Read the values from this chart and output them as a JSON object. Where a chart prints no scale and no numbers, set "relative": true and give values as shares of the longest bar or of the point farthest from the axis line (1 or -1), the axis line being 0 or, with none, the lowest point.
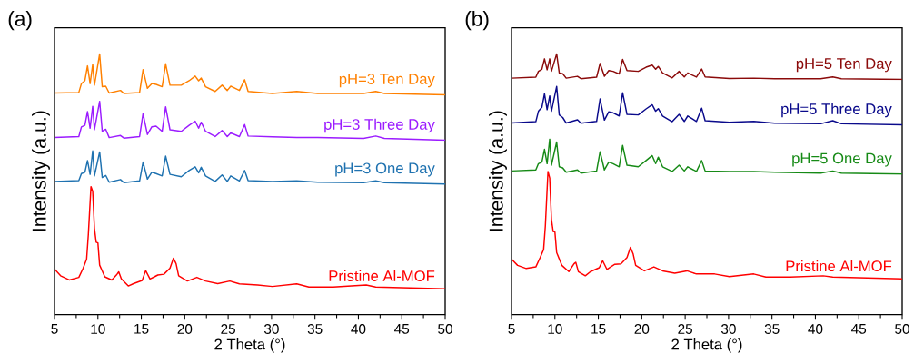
{
  "chart_data": [
    {
      "type": "line",
      "title": "(a)",
      "xlabel": "2 Theta (°)",
      "ylabel": "Intensity (a.u.)",
      "relative": true,
      "tick_labels": "x",
      "xlim": [
        5,
        50
      ],
      "xticks": [
        5,
        10,
        15,
        20,
        25,
        30,
        35,
        40,
        45,
        50
      ],
      "x": [
        5,
        7.8,
        8.1,
        8.5,
        8.8,
        9.1,
        9.4,
        9.6,
        10.2,
        10.5,
        10.9,
        11.3,
        12.6,
        13.0,
        14.8,
        15.2,
        15.7,
        16.2,
        16.7,
        17.4,
        17.8,
        18.3,
        19.6,
        20.5,
        21.2,
        21.6,
        21.9,
        22.4,
        23.5,
        24.3,
        24.9,
        25.3,
        26.3,
        26.9,
        27.3,
        30.1,
        32.9,
        35.3,
        40.6,
        42.0,
        43.0,
        50
      ],
      "series": [
        {
          "name": "pH=3 Ten Day",
          "color": "#ff8000",
          "values": [
            0.85,
            0.852,
            0.886,
            0.897,
            0.954,
            0.886,
            0.959,
            0.88,
            1.0,
            0.874,
            0.876,
            0.85,
            0.86,
            0.848,
            0.852,
            0.94,
            0.868,
            0.886,
            0.883,
            0.874,
            0.962,
            0.88,
            0.88,
            0.897,
            0.915,
            0.897,
            0.907,
            0.874,
            0.856,
            0.88,
            0.86,
            0.876,
            0.86,
            0.901,
            0.856,
            0.848,
            0.856,
            0.848,
            0.848,
            0.856,
            0.848,
            0.843
          ]
        },
        {
          "name": "pH=3 Three Day",
          "color": "#9b1cff",
          "values": [
            0.679,
            0.683,
            0.72,
            0.726,
            0.779,
            0.715,
            0.799,
            0.709,
            0.818,
            0.703,
            0.711,
            0.679,
            0.687,
            0.677,
            0.683,
            0.771,
            0.691,
            0.72,
            0.723,
            0.703,
            0.797,
            0.709,
            0.703,
            0.726,
            0.742,
            0.715,
            0.738,
            0.703,
            0.683,
            0.706,
            0.683,
            0.697,
            0.683,
            0.729,
            0.685,
            0.682,
            0.679,
            0.679,
            0.676,
            0.685,
            0.676,
            0.669
          ]
        },
        {
          "name": "pH=3 One Day",
          "color": "#1f72b0",
          "values": [
            0.511,
            0.514,
            0.541,
            0.546,
            0.591,
            0.538,
            0.628,
            0.532,
            0.624,
            0.526,
            0.534,
            0.508,
            0.518,
            0.506,
            0.513,
            0.585,
            0.52,
            0.546,
            0.541,
            0.532,
            0.608,
            0.538,
            0.529,
            0.553,
            0.567,
            0.544,
            0.565,
            0.532,
            0.511,
            0.536,
            0.511,
            0.532,
            0.513,
            0.553,
            0.514,
            0.511,
            0.513,
            0.508,
            0.506,
            0.513,
            0.506,
            0.501
          ]
        },
        {
          "name": "Pristine Al-MOF",
          "color": "#ff0000",
          "x": [
            5.0,
            5.7,
            6.7,
            7.8,
            8.3,
            8.7,
            8.9,
            9.2,
            9.4,
            9.6,
            9.8,
            10.0,
            10.2,
            10.8,
            11.6,
            12.2,
            12.4,
            12.7,
            13.5,
            14.1,
            15.1,
            15.5,
            16.0,
            16.5,
            16.9,
            17.6,
            18.3,
            18.7,
            19.0,
            19.3,
            20.3,
            21.4,
            22.4,
            23.8,
            25.2,
            26.3,
            28.4,
            30.1,
            32.9,
            34.3,
            37.1,
            40.9,
            42.0,
            50
          ],
          "values": [
            0.175,
            0.149,
            0.133,
            0.143,
            0.178,
            0.213,
            0.308,
            0.491,
            0.473,
            0.331,
            0.278,
            0.275,
            0.19,
            0.145,
            0.133,
            0.155,
            0.164,
            0.137,
            0.11,
            0.119,
            0.131,
            0.169,
            0.137,
            0.145,
            0.152,
            0.155,
            0.178,
            0.216,
            0.196,
            0.149,
            0.129,
            0.143,
            0.129,
            0.119,
            0.129,
            0.118,
            0.114,
            0.108,
            0.118,
            0.106,
            0.106,
            0.114,
            0.106,
            0.099
          ]
        }
      ]
    },
    {
      "type": "line",
      "title": "(b)",
      "xlabel": "2 Theta (°)",
      "ylabel": "Intensity (a.u.)",
      "relative": true,
      "tick_labels": "x",
      "xlim": [
        5,
        50
      ],
      "xticks": [
        5,
        10,
        15,
        20,
        25,
        30,
        35,
        40,
        45,
        50
      ],
      "x": [
        5,
        7.8,
        8.1,
        8.5,
        8.8,
        9.1,
        9.4,
        9.6,
        10.2,
        10.5,
        10.9,
        11.3,
        12.6,
        13.0,
        14.8,
        15.2,
        15.7,
        16.2,
        16.7,
        17.4,
        17.8,
        18.3,
        19.6,
        20.5,
        21.2,
        21.6,
        21.9,
        22.4,
        23.5,
        24.3,
        24.9,
        25.3,
        26.3,
        26.9,
        27.3,
        30.1,
        32.9,
        35.3,
        40.6,
        42.0,
        43.0,
        50
      ],
      "series": [
        {
          "name": "pH=5 Ten Day",
          "color": "#8b0a0a",
          "values": [
            0.907,
            0.911,
            0.933,
            0.941,
            0.981,
            0.939,
            0.981,
            0.933,
            1.0,
            0.927,
            0.924,
            0.907,
            0.914,
            0.905,
            0.911,
            0.963,
            0.914,
            0.936,
            0.933,
            0.923,
            0.979,
            0.936,
            0.933,
            0.949,
            0.957,
            0.941,
            0.952,
            0.927,
            0.908,
            0.933,
            0.912,
            0.927,
            0.911,
            0.942,
            0.912,
            0.906,
            0.907,
            0.905,
            0.905,
            0.912,
            0.905,
            0.902
          ]
        },
        {
          "name": "pH=5 Three Day",
          "color": "#0a0a8b",
          "values": [
            0.735,
            0.74,
            0.78,
            0.795,
            0.847,
            0.786,
            0.839,
            0.78,
            0.875,
            0.766,
            0.756,
            0.735,
            0.747,
            0.734,
            0.741,
            0.827,
            0.746,
            0.778,
            0.774,
            0.762,
            0.851,
            0.768,
            0.766,
            0.789,
            0.805,
            0.78,
            0.79,
            0.762,
            0.74,
            0.768,
            0.741,
            0.762,
            0.741,
            0.792,
            0.744,
            0.738,
            0.741,
            0.734,
            0.732,
            0.744,
            0.732,
            0.728
          ]
        },
        {
          "name": "pH=5 One Day",
          "color": "#168a16",
          "values": [
            0.551,
            0.555,
            0.579,
            0.585,
            0.634,
            0.579,
            0.673,
            0.573,
            0.662,
            0.567,
            0.563,
            0.546,
            0.555,
            0.543,
            0.551,
            0.625,
            0.555,
            0.585,
            0.579,
            0.567,
            0.649,
            0.573,
            0.567,
            0.591,
            0.61,
            0.579,
            0.604,
            0.567,
            0.549,
            0.573,
            0.551,
            0.567,
            0.549,
            0.591,
            0.551,
            0.549,
            0.549,
            0.546,
            0.543,
            0.551,
            0.543,
            0.539
          ]
        },
        {
          "name": "Pristine Al-MOF",
          "color": "#ff0000",
          "x": [
            5.0,
            5.7,
            6.7,
            7.8,
            8.3,
            8.7,
            8.9,
            9.2,
            9.4,
            9.6,
            9.8,
            10.0,
            10.2,
            10.8,
            11.6,
            12.2,
            12.4,
            12.7,
            13.5,
            14.1,
            15.1,
            15.5,
            16.0,
            16.5,
            16.9,
            17.6,
            18.3,
            18.7,
            19.0,
            19.3,
            20.3,
            21.4,
            22.4,
            23.8,
            25.2,
            26.3,
            28.4,
            30.1,
            32.9,
            34.3,
            37.1,
            40.9,
            42.0,
            50
          ],
          "values": [
            0.213,
            0.189,
            0.177,
            0.183,
            0.219,
            0.25,
            0.341,
            0.549,
            0.524,
            0.366,
            0.319,
            0.317,
            0.238,
            0.189,
            0.165,
            0.195,
            0.201,
            0.165,
            0.149,
            0.165,
            0.18,
            0.207,
            0.173,
            0.185,
            0.193,
            0.195,
            0.219,
            0.258,
            0.234,
            0.189,
            0.168,
            0.183,
            0.168,
            0.159,
            0.168,
            0.156,
            0.156,
            0.146,
            0.156,
            0.144,
            0.144,
            0.149,
            0.144,
            0.137
          ]
        }
      ]
    }
  ]
}
